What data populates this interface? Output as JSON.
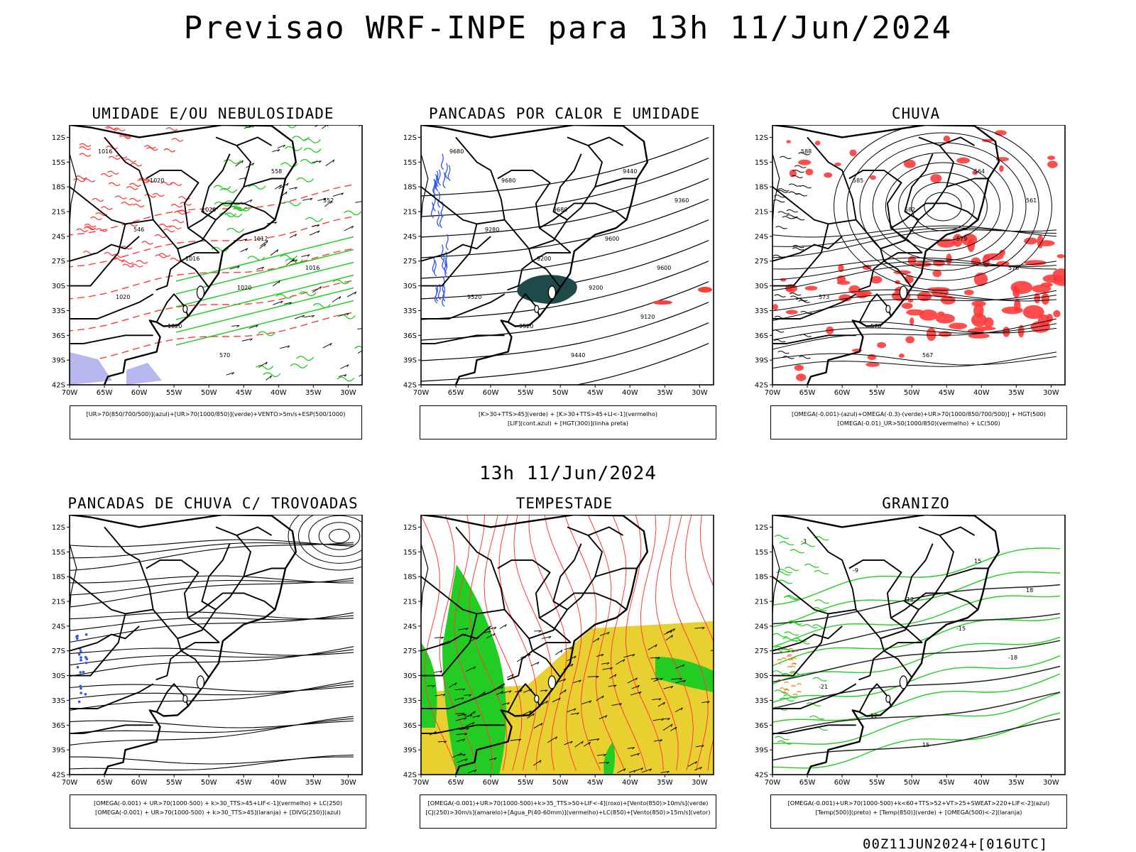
{
  "main_title": "Previsao WRF-INPE  para 13h 11/Jun/2024",
  "mid_title": "13h 11/Jun/2024",
  "footer": "00Z11JUN2024+[016UTC]",
  "axes": {
    "lat_labels": [
      "12S",
      "15S",
      "18S",
      "21S",
      "24S",
      "27S",
      "30S",
      "33S",
      "36S",
      "39S",
      "42S"
    ],
    "lon_labels": [
      "70W",
      "65W",
      "60W",
      "55W",
      "50W",
      "45W",
      "40W",
      "35W",
      "30W"
    ]
  },
  "panels": [
    {
      "title": "UMIDADE E/OU NEBULOSIDADE",
      "legend": [
        "[UR>70(850/700/500)](azul)+[UR>70(1000/850)](verde)+VENTO>5m/s+ESP(500/1000)"
      ],
      "contour_labels": [
        "1016",
        "1020",
        "1020",
        "1012",
        "1016",
        "1020",
        "1020",
        "570",
        "558",
        "552",
        "546",
        "1016",
        "1020"
      ]
    },
    {
      "title": "PANCADAS POR CALOR E UMIDADE",
      "legend": [
        "[K>30+TTS>45](verde) + [K>30+TTS>45+LI<-1](vermelho)",
        "[LIF](cont.azul) + [HGT(300)](linha preta)"
      ],
      "contour_labels": [
        "9680",
        "9680",
        "9680",
        "9600",
        "9600",
        "9520",
        "9520",
        "9440",
        "9440",
        "9360",
        "9280",
        "9200",
        "9200",
        "9120"
      ]
    },
    {
      "title": "CHUVA",
      "legend": [
        "[OMEGA(-0.001)-(azul)+OMEGA(-0.3)-(verde)+UR>70(1000/850/700/500)] + HGT(500)",
        "[OMEGA(-0.01)_UR>50(1000/850)(vermelho) + LC(500)"
      ],
      "contour_labels": [
        "588",
        "585",
        "582",
        "579",
        "576",
        "573",
        "570",
        "567",
        "564",
        "561"
      ]
    },
    {
      "title": "PANCADAS DE CHUVA C/ TROVOADAS",
      "legend": [
        "[OMEGA(-0.001) + UR>70(1000-500) + k>30_TTS>45+LIF<-1](vermelho) + LC(250)",
        "[OMEGA(-0.001) + UR>70(1000-500) + k>30_TTS>45](laranja) + [DIVG(250)](azul)"
      ],
      "contour_labels": []
    },
    {
      "title": "TEMPESTADE",
      "legend": [
        "[OMEGA(-0.001)+UR>70(1000-500)+k>35_TTS>50+LIF<-4](roxo)+[Vento(850)>10m/s](verde)",
        "[CJ(250)>30m/s](amarelo)+[Agua_P(40-60mm)](vermelho)+LC(850)+[Vento(850)>15m/s](vetor)"
      ],
      "contour_labels": []
    },
    {
      "title": "GRANIZO",
      "legend": [
        "[OMEGA(-0.001)+UR>70(1000-500)+k<60+TTS>52+VT>25+SWEAT>220+LIF<-2](azul)",
        "[Temp(500)](preto) + [Temp(850)](verde) + [OMEGA(500)<-2](laranja)"
      ],
      "contour_labels": [
        "-3",
        "-9",
        "-12",
        "-15",
        "-18",
        "-21",
        "12",
        "15",
        "15",
        "18"
      ]
    }
  ],
  "colors": {
    "red": "#ff3b3b",
    "green": "#22cc22",
    "blue": "#3355ee",
    "lavender": "#b8b8f0",
    "teal": "#1e4a4a",
    "yellow": "#e8d030",
    "black": "#000000"
  }
}
